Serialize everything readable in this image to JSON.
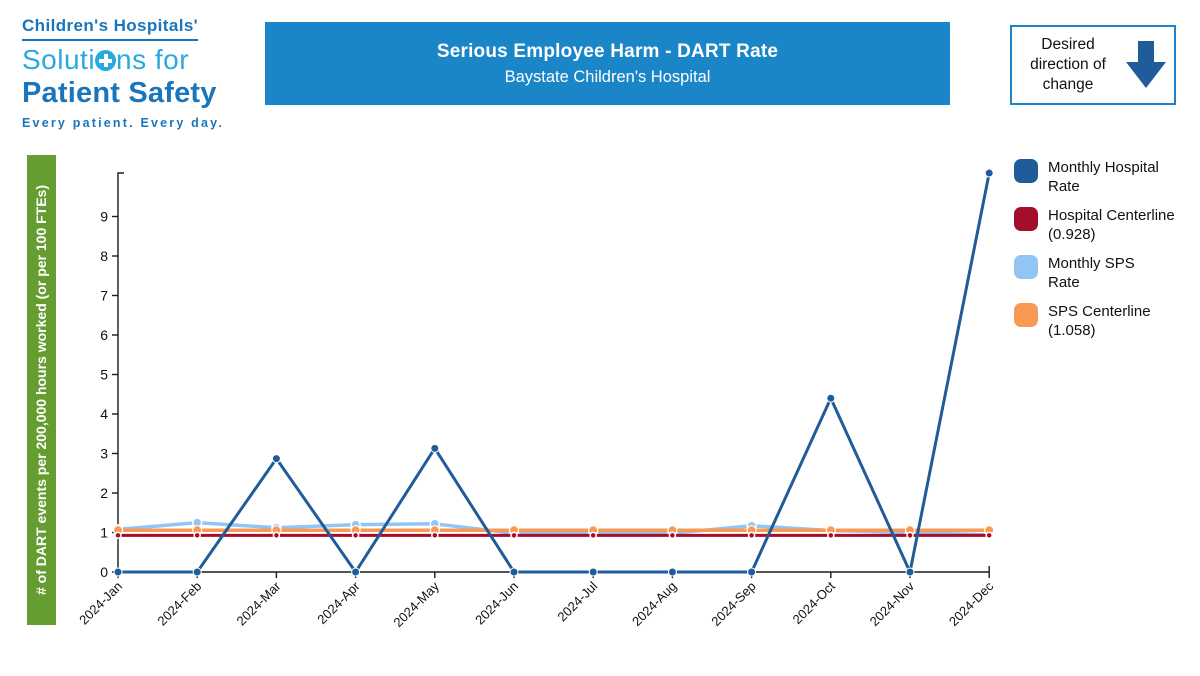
{
  "logo": {
    "line1": "Children's Hospitals'",
    "line2_pre": "Soluti",
    "line2_post": "ns for",
    "line3": "Patient Safety",
    "tagline": "Every patient. Every day.",
    "dark_blue": "#1b75bb",
    "light_blue": "#2aa9e0"
  },
  "header": {
    "title": "Serious Employee Harm - DART Rate",
    "subtitle": "Baystate Children's Hospital",
    "banner_color": "#1a86c8"
  },
  "desired_direction": {
    "text": "Desired direction of change",
    "arrow_icon": "arrow-down",
    "arrow_color": "#1f5c99",
    "border_color": "#1a86c8"
  },
  "chart_data": {
    "type": "line",
    "title": "Serious Employee Harm - DART Rate",
    "subtitle": "Baystate Children's Hospital",
    "xlabel": "",
    "ylabel": "# of DART events per 200,000 hours worked (or per 100 FTEs)",
    "ylabel_bg": "#669d31",
    "categories": [
      "2024-Jan",
      "2024-Feb",
      "2024-Mar",
      "2024-Apr",
      "2024-May",
      "2024-Jun",
      "2024-Jul",
      "2024-Aug",
      "2024-Sep",
      "2024-Oct",
      "2024-Nov",
      "2024-Dec"
    ],
    "ylim": [
      0,
      10.1
    ],
    "yticks": [
      0,
      1,
      2,
      3,
      4,
      5,
      6,
      7,
      8,
      9
    ],
    "grid": false,
    "legend_position": "right",
    "series": [
      {
        "name": "Monthly Hospital Rate",
        "color": "#1f5c99",
        "values": [
          0,
          0,
          2.87,
          0,
          3.13,
          0,
          0,
          0,
          0,
          4.4,
          0,
          10.1
        ]
      },
      {
        "name": "Hospital Centerline (0.928)",
        "color": "#a30e2d",
        "centerline_value": 0.928,
        "values": [
          0.928,
          0.928,
          0.928,
          0.928,
          0.928,
          0.928,
          0.928,
          0.928,
          0.928,
          0.928,
          0.928,
          0.928
        ]
      },
      {
        "name": "Monthly SPS Rate",
        "color": "#92c5f3",
        "values": [
          1.08,
          1.25,
          1.12,
          1.2,
          1.22,
          0.98,
          0.97,
          0.98,
          1.17,
          1.05,
          1.0,
          0.94
        ]
      },
      {
        "name": "SPS Centerline (1.058)",
        "color": "#f89a54",
        "centerline_value": 1.058,
        "values": [
          1.058,
          1.058,
          1.058,
          1.058,
          1.058,
          1.058,
          1.058,
          1.058,
          1.058,
          1.058,
          1.058,
          1.058
        ]
      }
    ]
  },
  "legend": {
    "items": [
      {
        "color": "#1f5c99",
        "line1": "Monthly Hospital",
        "line2": "Rate"
      },
      {
        "color": "#a30e2d",
        "line1": "Hospital Centerline",
        "line2": "(0.928)"
      },
      {
        "color": "#92c5f3",
        "line1": "Monthly SPS",
        "line2": "Rate"
      },
      {
        "color": "#f89a54",
        "line1": "SPS Centerline",
        "line2": "(1.058)"
      }
    ]
  }
}
